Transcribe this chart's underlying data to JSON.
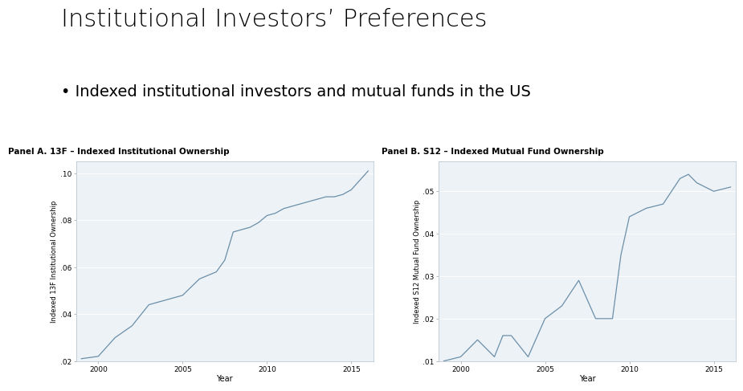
{
  "title": "Institutional Investors’ Preferences",
  "subtitle": "• Indexed institutional investors and mutual funds in the US",
  "panel_a_title": "Panel A. 13F – Indexed Institutional Ownership",
  "panel_b_title": "Panel B. S12 – Indexed Mutual Fund Ownership",
  "panel_a_xlabel": "Year",
  "panel_b_xlabel": "Year",
  "panel_a_ylabel": "Indexed 13F Institutional Ownership",
  "panel_b_ylabel": "Indexed S12 Mutual Fund Ownership",
  "panel_a_years": [
    1999,
    2000,
    2001,
    2002,
    2003,
    2004,
    2005,
    2006,
    2007,
    2007.5,
    2008,
    2008.5,
    2009,
    2009.5,
    2010,
    2010.5,
    2011,
    2012,
    2013,
    2013.5,
    2014,
    2014.5,
    2015,
    2016
  ],
  "panel_a_values": [
    0.021,
    0.022,
    0.03,
    0.035,
    0.044,
    0.046,
    0.048,
    0.055,
    0.058,
    0.063,
    0.075,
    0.076,
    0.077,
    0.079,
    0.082,
    0.083,
    0.085,
    0.087,
    0.089,
    0.09,
    0.09,
    0.091,
    0.093,
    0.101
  ],
  "panel_b_years": [
    1999,
    2000,
    2001,
    2001.5,
    2002,
    2002.5,
    2003,
    2004,
    2005,
    2006,
    2007,
    2008,
    2009,
    2009.5,
    2010,
    2010.5,
    2011,
    2012,
    2013,
    2013.5,
    2014,
    2014.5,
    2015,
    2016
  ],
  "panel_b_values": [
    0.01,
    0.011,
    0.015,
    0.013,
    0.011,
    0.016,
    0.016,
    0.011,
    0.02,
    0.023,
    0.029,
    0.02,
    0.02,
    0.035,
    0.044,
    0.045,
    0.046,
    0.047,
    0.053,
    0.054,
    0.052,
    0.051,
    0.05,
    0.051
  ],
  "panel_a_ylim": [
    0.02,
    0.105
  ],
  "panel_b_ylim": [
    0.01,
    0.057
  ],
  "panel_a_yticks": [
    0.02,
    0.04,
    0.06,
    0.08,
    0.1
  ],
  "panel_b_yticks": [
    0.01,
    0.02,
    0.03,
    0.04,
    0.05
  ],
  "line_color": "#6b8fa8",
  "plot_bg": "#dce6ef",
  "inner_bg": "#edf2f7",
  "border_color": "#b0c0cc",
  "title_fontsize": 22,
  "subtitle_fontsize": 14,
  "panel_title_fontsize": 7.5,
  "axis_label_fontsize": 6,
  "tick_fontsize": 6.5
}
